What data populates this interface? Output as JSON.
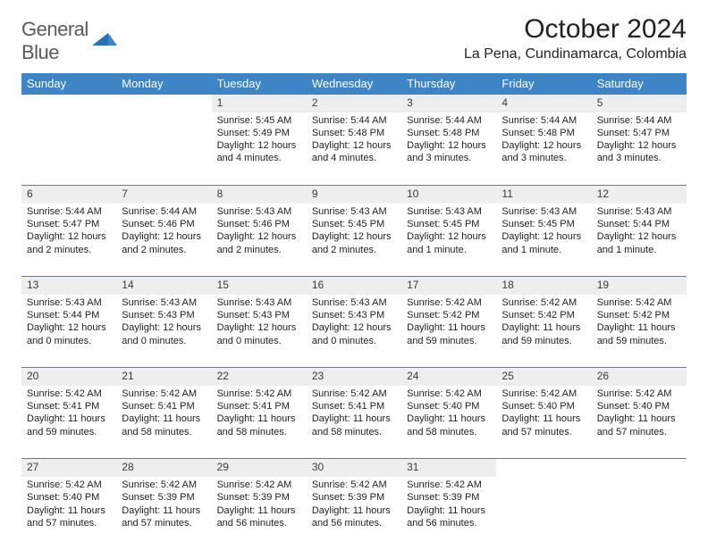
{
  "logo": {
    "word1": "General",
    "word2": "Blue"
  },
  "title": "October 2024",
  "subtitle": "La Pena, Cundinamarca, Colombia",
  "colors": {
    "header_bg": "#3d85c6",
    "header_fg": "#ffffff",
    "daynum_bg": "#eeeeee",
    "rule": "#3d85c6",
    "text": "#222222"
  },
  "day_headers": [
    "Sunday",
    "Monday",
    "Tuesday",
    "Wednesday",
    "Thursday",
    "Friday",
    "Saturday"
  ],
  "weeks": [
    [
      null,
      null,
      {
        "n": "1",
        "sr": "5:45 AM",
        "ss": "5:49 PM",
        "dl": "12 hours and 4 minutes."
      },
      {
        "n": "2",
        "sr": "5:44 AM",
        "ss": "5:48 PM",
        "dl": "12 hours and 4 minutes."
      },
      {
        "n": "3",
        "sr": "5:44 AM",
        "ss": "5:48 PM",
        "dl": "12 hours and 3 minutes."
      },
      {
        "n": "4",
        "sr": "5:44 AM",
        "ss": "5:48 PM",
        "dl": "12 hours and 3 minutes."
      },
      {
        "n": "5",
        "sr": "5:44 AM",
        "ss": "5:47 PM",
        "dl": "12 hours and 3 minutes."
      }
    ],
    [
      {
        "n": "6",
        "sr": "5:44 AM",
        "ss": "5:47 PM",
        "dl": "12 hours and 2 minutes."
      },
      {
        "n": "7",
        "sr": "5:44 AM",
        "ss": "5:46 PM",
        "dl": "12 hours and 2 minutes."
      },
      {
        "n": "8",
        "sr": "5:43 AM",
        "ss": "5:46 PM",
        "dl": "12 hours and 2 minutes."
      },
      {
        "n": "9",
        "sr": "5:43 AM",
        "ss": "5:45 PM",
        "dl": "12 hours and 2 minutes."
      },
      {
        "n": "10",
        "sr": "5:43 AM",
        "ss": "5:45 PM",
        "dl": "12 hours and 1 minute."
      },
      {
        "n": "11",
        "sr": "5:43 AM",
        "ss": "5:45 PM",
        "dl": "12 hours and 1 minute."
      },
      {
        "n": "12",
        "sr": "5:43 AM",
        "ss": "5:44 PM",
        "dl": "12 hours and 1 minute."
      }
    ],
    [
      {
        "n": "13",
        "sr": "5:43 AM",
        "ss": "5:44 PM",
        "dl": "12 hours and 0 minutes."
      },
      {
        "n": "14",
        "sr": "5:43 AM",
        "ss": "5:43 PM",
        "dl": "12 hours and 0 minutes."
      },
      {
        "n": "15",
        "sr": "5:43 AM",
        "ss": "5:43 PM",
        "dl": "12 hours and 0 minutes."
      },
      {
        "n": "16",
        "sr": "5:43 AM",
        "ss": "5:43 PM",
        "dl": "12 hours and 0 minutes."
      },
      {
        "n": "17",
        "sr": "5:42 AM",
        "ss": "5:42 PM",
        "dl": "11 hours and 59 minutes."
      },
      {
        "n": "18",
        "sr": "5:42 AM",
        "ss": "5:42 PM",
        "dl": "11 hours and 59 minutes."
      },
      {
        "n": "19",
        "sr": "5:42 AM",
        "ss": "5:42 PM",
        "dl": "11 hours and 59 minutes."
      }
    ],
    [
      {
        "n": "20",
        "sr": "5:42 AM",
        "ss": "5:41 PM",
        "dl": "11 hours and 59 minutes."
      },
      {
        "n": "21",
        "sr": "5:42 AM",
        "ss": "5:41 PM",
        "dl": "11 hours and 58 minutes."
      },
      {
        "n": "22",
        "sr": "5:42 AM",
        "ss": "5:41 PM",
        "dl": "11 hours and 58 minutes."
      },
      {
        "n": "23",
        "sr": "5:42 AM",
        "ss": "5:41 PM",
        "dl": "11 hours and 58 minutes."
      },
      {
        "n": "24",
        "sr": "5:42 AM",
        "ss": "5:40 PM",
        "dl": "11 hours and 58 minutes."
      },
      {
        "n": "25",
        "sr": "5:42 AM",
        "ss": "5:40 PM",
        "dl": "11 hours and 57 minutes."
      },
      {
        "n": "26",
        "sr": "5:42 AM",
        "ss": "5:40 PM",
        "dl": "11 hours and 57 minutes."
      }
    ],
    [
      {
        "n": "27",
        "sr": "5:42 AM",
        "ss": "5:40 PM",
        "dl": "11 hours and 57 minutes."
      },
      {
        "n": "28",
        "sr": "5:42 AM",
        "ss": "5:39 PM",
        "dl": "11 hours and 57 minutes."
      },
      {
        "n": "29",
        "sr": "5:42 AM",
        "ss": "5:39 PM",
        "dl": "11 hours and 56 minutes."
      },
      {
        "n": "30",
        "sr": "5:42 AM",
        "ss": "5:39 PM",
        "dl": "11 hours and 56 minutes."
      },
      {
        "n": "31",
        "sr": "5:42 AM",
        "ss": "5:39 PM",
        "dl": "11 hours and 56 minutes."
      },
      null,
      null
    ]
  ],
  "labels": {
    "sunrise": "Sunrise: ",
    "sunset": "Sunset: ",
    "daylight": "Daylight: "
  }
}
